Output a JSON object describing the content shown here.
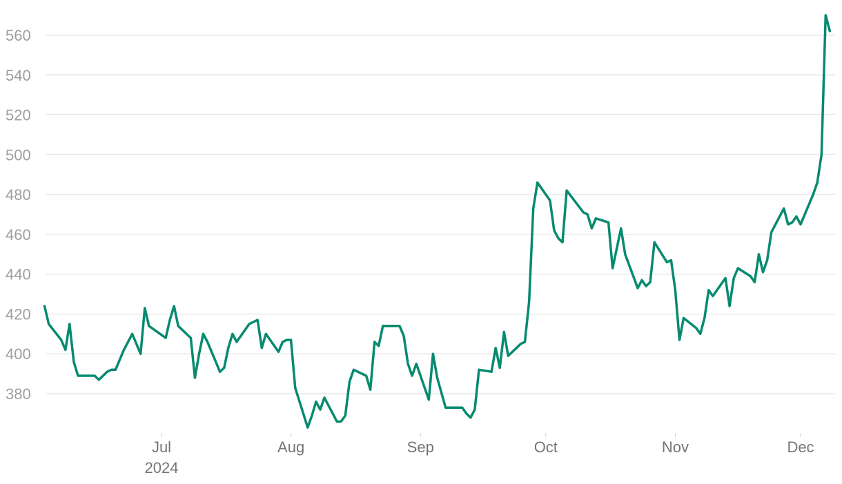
{
  "chart_data": {
    "type": "line",
    "title": "",
    "xlabel": "",
    "ylabel": "",
    "grid": "horizontal",
    "legend": "none",
    "ylim": [
      360,
      575
    ],
    "y_ticks": [
      380,
      400,
      420,
      440,
      460,
      480,
      500,
      520,
      540,
      560
    ],
    "x_ticks": [
      {
        "date": "2024-07-01",
        "label": "Jul",
        "sublabel": "2024"
      },
      {
        "date": "2024-08-01",
        "label": "Aug",
        "sublabel": ""
      },
      {
        "date": "2024-09-01",
        "label": "Sep",
        "sublabel": ""
      },
      {
        "date": "2024-10-01",
        "label": "Oct",
        "sublabel": ""
      },
      {
        "date": "2024-11-01",
        "label": "Nov",
        "sublabel": ""
      },
      {
        "date": "2024-12-01",
        "label": "Dec",
        "sublabel": ""
      }
    ],
    "xlim": [
      "2024-06-03",
      "2024-12-05"
    ],
    "series": [
      {
        "color": "#078a6f",
        "points": [
          [
            "2024-06-03",
            424
          ],
          [
            "2024-06-04",
            415
          ],
          [
            "2024-06-07",
            407
          ],
          [
            "2024-06-08",
            402
          ],
          [
            "2024-06-09",
            415
          ],
          [
            "2024-06-10",
            396
          ],
          [
            "2024-06-11",
            389
          ],
          [
            "2024-06-14",
            389
          ],
          [
            "2024-06-15",
            389
          ],
          [
            "2024-06-16",
            387
          ],
          [
            "2024-06-17",
            389
          ],
          [
            "2024-06-18",
            391
          ],
          [
            "2024-06-19",
            392
          ],
          [
            "2024-06-20",
            392
          ],
          [
            "2024-06-22",
            402
          ],
          [
            "2024-06-24",
            410
          ],
          [
            "2024-06-26",
            400
          ],
          [
            "2024-06-27",
            423
          ],
          [
            "2024-06-28",
            414
          ],
          [
            "2024-07-02",
            408
          ],
          [
            "2024-07-03",
            417
          ],
          [
            "2024-07-04",
            424
          ],
          [
            "2024-07-05",
            414
          ],
          [
            "2024-07-08",
            408
          ],
          [
            "2024-07-09",
            388
          ],
          [
            "2024-07-10",
            400
          ],
          [
            "2024-07-11",
            410
          ],
          [
            "2024-07-12",
            406
          ],
          [
            "2024-07-15",
            391
          ],
          [
            "2024-07-16",
            393
          ],
          [
            "2024-07-17",
            403
          ],
          [
            "2024-07-18",
            410
          ],
          [
            "2024-07-19",
            406
          ],
          [
            "2024-07-22",
            415
          ],
          [
            "2024-07-24",
            417
          ],
          [
            "2024-07-25",
            403
          ],
          [
            "2024-07-26",
            410
          ],
          [
            "2024-07-29",
            401
          ],
          [
            "2024-07-30",
            406
          ],
          [
            "2024-07-31",
            407
          ],
          [
            "2024-08-01",
            407
          ],
          [
            "2024-08-02",
            383
          ],
          [
            "2024-08-05",
            363
          ],
          [
            "2024-08-06",
            369
          ],
          [
            "2024-08-07",
            376
          ],
          [
            "2024-08-08",
            372
          ],
          [
            "2024-08-09",
            378
          ],
          [
            "2024-08-12",
            366
          ],
          [
            "2024-08-13",
            366
          ],
          [
            "2024-08-14",
            369
          ],
          [
            "2024-08-15",
            386
          ],
          [
            "2024-08-16",
            392
          ],
          [
            "2024-08-19",
            389
          ],
          [
            "2024-08-20",
            382
          ],
          [
            "2024-08-21",
            406
          ],
          [
            "2024-08-22",
            404
          ],
          [
            "2024-08-23",
            414
          ],
          [
            "2024-08-26",
            414
          ],
          [
            "2024-08-27",
            414
          ],
          [
            "2024-08-28",
            409
          ],
          [
            "2024-08-29",
            395
          ],
          [
            "2024-08-30",
            389
          ],
          [
            "2024-08-31",
            395
          ],
          [
            "2024-09-03",
            377
          ],
          [
            "2024-09-04",
            400
          ],
          [
            "2024-09-05",
            388
          ],
          [
            "2024-09-07",
            373
          ],
          [
            "2024-09-10",
            373
          ],
          [
            "2024-09-11",
            373
          ],
          [
            "2024-09-12",
            370
          ],
          [
            "2024-09-13",
            368
          ],
          [
            "2024-09-14",
            372
          ],
          [
            "2024-09-15",
            392
          ],
          [
            "2024-09-18",
            391
          ],
          [
            "2024-09-19",
            403
          ],
          [
            "2024-09-20",
            393
          ],
          [
            "2024-09-21",
            411
          ],
          [
            "2024-09-22",
            399
          ],
          [
            "2024-09-25",
            405
          ],
          [
            "2024-09-26",
            406
          ],
          [
            "2024-09-27",
            426
          ],
          [
            "2024-09-28",
            473
          ],
          [
            "2024-09-29",
            486
          ],
          [
            "2024-10-02",
            477
          ],
          [
            "2024-10-03",
            462
          ],
          [
            "2024-10-04",
            458
          ],
          [
            "2024-10-05",
            456
          ],
          [
            "2024-10-06",
            482
          ],
          [
            "2024-10-10",
            471
          ],
          [
            "2024-10-11",
            470
          ],
          [
            "2024-10-12",
            463
          ],
          [
            "2024-10-13",
            468
          ],
          [
            "2024-10-16",
            466
          ],
          [
            "2024-10-17",
            443
          ],
          [
            "2024-10-19",
            463
          ],
          [
            "2024-10-20",
            450
          ],
          [
            "2024-10-23",
            433
          ],
          [
            "2024-10-24",
            437
          ],
          [
            "2024-10-25",
            434
          ],
          [
            "2024-10-26",
            436
          ],
          [
            "2024-10-27",
            456
          ],
          [
            "2024-10-30",
            446
          ],
          [
            "2024-10-31",
            447
          ],
          [
            "2024-11-01",
            432
          ],
          [
            "2024-11-02",
            407
          ],
          [
            "2024-11-03",
            418
          ],
          [
            "2024-11-06",
            413
          ],
          [
            "2024-11-07",
            410
          ],
          [
            "2024-11-08",
            418
          ],
          [
            "2024-11-09",
            432
          ],
          [
            "2024-11-10",
            429
          ],
          [
            "2024-11-13",
            438
          ],
          [
            "2024-11-14",
            424
          ],
          [
            "2024-11-15",
            438
          ],
          [
            "2024-11-16",
            443
          ],
          [
            "2024-11-19",
            439
          ],
          [
            "2024-11-20",
            436
          ],
          [
            "2024-11-21",
            450
          ],
          [
            "2024-11-22",
            441
          ],
          [
            "2024-11-23",
            447
          ],
          [
            "2024-11-24",
            461
          ],
          [
            "2024-11-27",
            473
          ],
          [
            "2024-11-28",
            465
          ],
          [
            "2024-11-29",
            466
          ],
          [
            "2024-11-30",
            469
          ],
          [
            "2024-12-01",
            465
          ],
          [
            "2024-12-04",
            480
          ],
          [
            "2024-12-05",
            486
          ],
          [
            "2024-12-06",
            500
          ],
          [
            "2024-12-07",
            570
          ],
          [
            "2024-12-08",
            562
          ]
        ]
      }
    ]
  }
}
